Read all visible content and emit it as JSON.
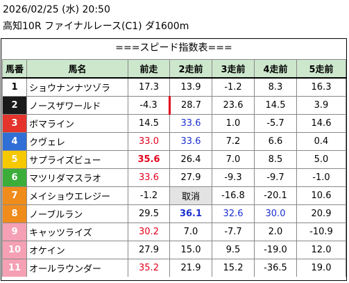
{
  "header": {
    "line1": "2026/02/25 (水) 20:50",
    "line2": "高知10R ファイナルレース(C1) ダ1600m"
  },
  "table": {
    "title": "===スピード指数表===",
    "columns": [
      "馬番",
      "馬名",
      "前走",
      "2走前",
      "3走前",
      "4走前",
      "5走前"
    ],
    "rows": [
      {
        "num": "1",
        "name": "ショウナンナツゾラ",
        "bg": "#ffffff",
        "fg": "#000000",
        "v": [
          "17.3",
          "13.9",
          "-1.2",
          "8.3",
          "16.3"
        ]
      },
      {
        "num": "2",
        "name": "ノースザワールド",
        "bg": "#1a1a1a",
        "fg": "#ffffff",
        "v": [
          "-4.3",
          "28.7",
          "23.6",
          "14.5",
          "3.9"
        ]
      },
      {
        "num": "3",
        "name": "ボマライン",
        "bg": "#e4342c",
        "fg": "#ffffff",
        "v": [
          "14.5",
          "33.6",
          "1.0",
          "-5.7",
          "14.6"
        ]
      },
      {
        "num": "4",
        "name": "クヴェレ",
        "bg": "#2f6fd6",
        "fg": "#ffffff",
        "v": [
          "33.0",
          "33.6",
          "7.2",
          "6.6",
          "0.4"
        ]
      },
      {
        "num": "5",
        "name": "サプライズビュー",
        "bg": "#f5c800",
        "fg": "#ffffff",
        "v": [
          "35.6",
          "26.4",
          "7.0",
          "8.5",
          "5.0"
        ]
      },
      {
        "num": "6",
        "name": "マツリダマスラオ",
        "bg": "#3bae3a",
        "fg": "#ffffff",
        "v": [
          "33.6",
          "27.9",
          "-9.3",
          "-9.7",
          "-1.0"
        ]
      },
      {
        "num": "7",
        "name": "メイショウエレジー",
        "bg": "#ef8c1c",
        "fg": "#ffffff",
        "v": [
          "-1.2",
          "取消",
          "-16.8",
          "-20.1",
          "10.6"
        ]
      },
      {
        "num": "8",
        "name": "ノーブルラン",
        "bg": "#ef8c1c",
        "fg": "#ffffff",
        "v": [
          "29.5",
          "36.1",
          "32.6",
          "30.0",
          "20.9"
        ]
      },
      {
        "num": "9",
        "name": "キャッツライズ",
        "bg": "#f5a0b4",
        "fg": "#ffffff",
        "v": [
          "30.2",
          "7.0",
          "-7.7",
          "2.0",
          "-10.9"
        ]
      },
      {
        "num": "10",
        "name": "オケイン",
        "bg": "#f5a0b4",
        "fg": "#ffffff",
        "v": [
          "27.9",
          "15.0",
          "9.5",
          "-19.0",
          "12.0"
        ]
      },
      {
        "num": "11",
        "name": "オールラウンダー",
        "bg": "#f5a0b4",
        "fg": "#ffffff",
        "v": [
          "35.2",
          "21.9",
          "15.2",
          "-36.5",
          "19.0"
        ]
      }
    ],
    "highlights": {
      "red": [
        "4-0",
        "5-0",
        "6-0",
        "9-0",
        "11-0"
      ],
      "blue": [
        "3-1",
        "4-1",
        "8-1",
        "8-2",
        "8-3"
      ],
      "bold": [
        "5-0",
        "8-1"
      ],
      "cancel": [
        "7-1"
      ],
      "mark": [
        "2-1"
      ]
    }
  }
}
